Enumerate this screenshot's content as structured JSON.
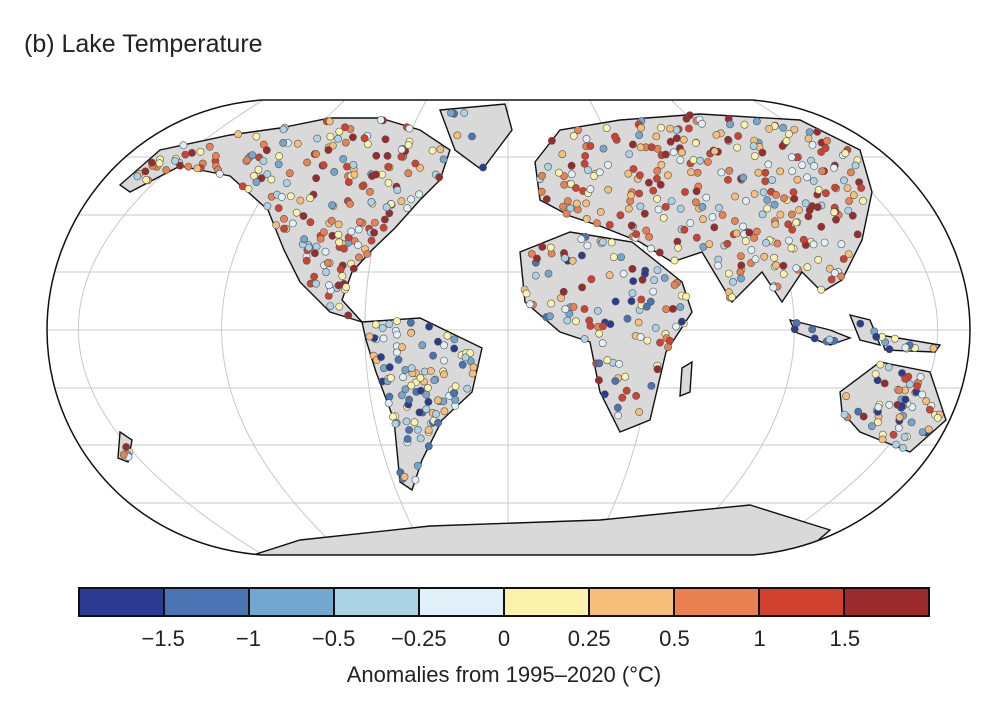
{
  "title": "(b) Lake Temperature",
  "map": {
    "projection": "robinson",
    "land_color": "#d9d9d9",
    "graticule": true,
    "marker": "circle",
    "variable": "lake temperature anomaly"
  },
  "colorbar": {
    "colors": [
      "#2c3b92",
      "#4a74b4",
      "#74a7cf",
      "#aad3e7",
      "#dff0f8",
      "#fbf2ac",
      "#f5bf7a",
      "#eb8150",
      "#d2402f",
      "#9c2a2b"
    ],
    "ticks": [
      "−1.5",
      "−1",
      "−0.5",
      "−0.25",
      "0",
      "0.25",
      "0.5",
      "1",
      "1.5"
    ],
    "label": "Anomalies from 1995–2020 (°C)"
  }
}
